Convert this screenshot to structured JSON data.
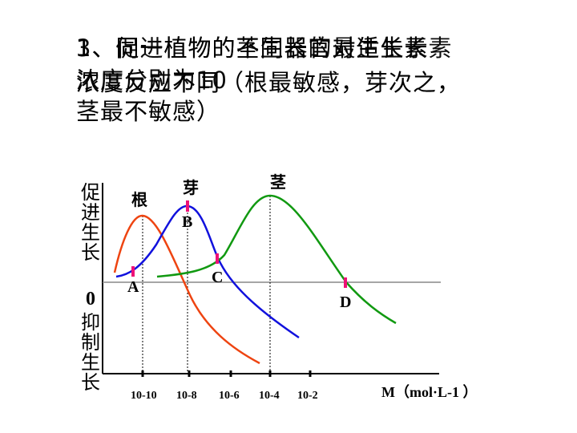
{
  "title": {
    "line1_a": "1、同一植物的不同器官对生长素",
    "line1_b": "3、促进植物的茎生长的最适生长素",
    "line2_a": "浓度反应不同（根最敏感，芽次之，",
    "line2_b": "浓度分别为10",
    "line3": "茎最不敏感）"
  },
  "y_axis": {
    "promote": "促进生长",
    "zero": "0",
    "inhibit": "抑制生长"
  },
  "x_axis": {
    "unit": "M（mol·L-1 ）",
    "ticks": [
      "10-10",
      "10-8",
      "10-6",
      "10-4",
      "10-2"
    ]
  },
  "curves": [
    {
      "name": "根",
      "color": "#ee4411"
    },
    {
      "name": "芽",
      "color": "#1111dd"
    },
    {
      "name": "茎",
      "color": "#119911"
    }
  ],
  "points": [
    "A",
    "B",
    "C",
    "D"
  ]
}
